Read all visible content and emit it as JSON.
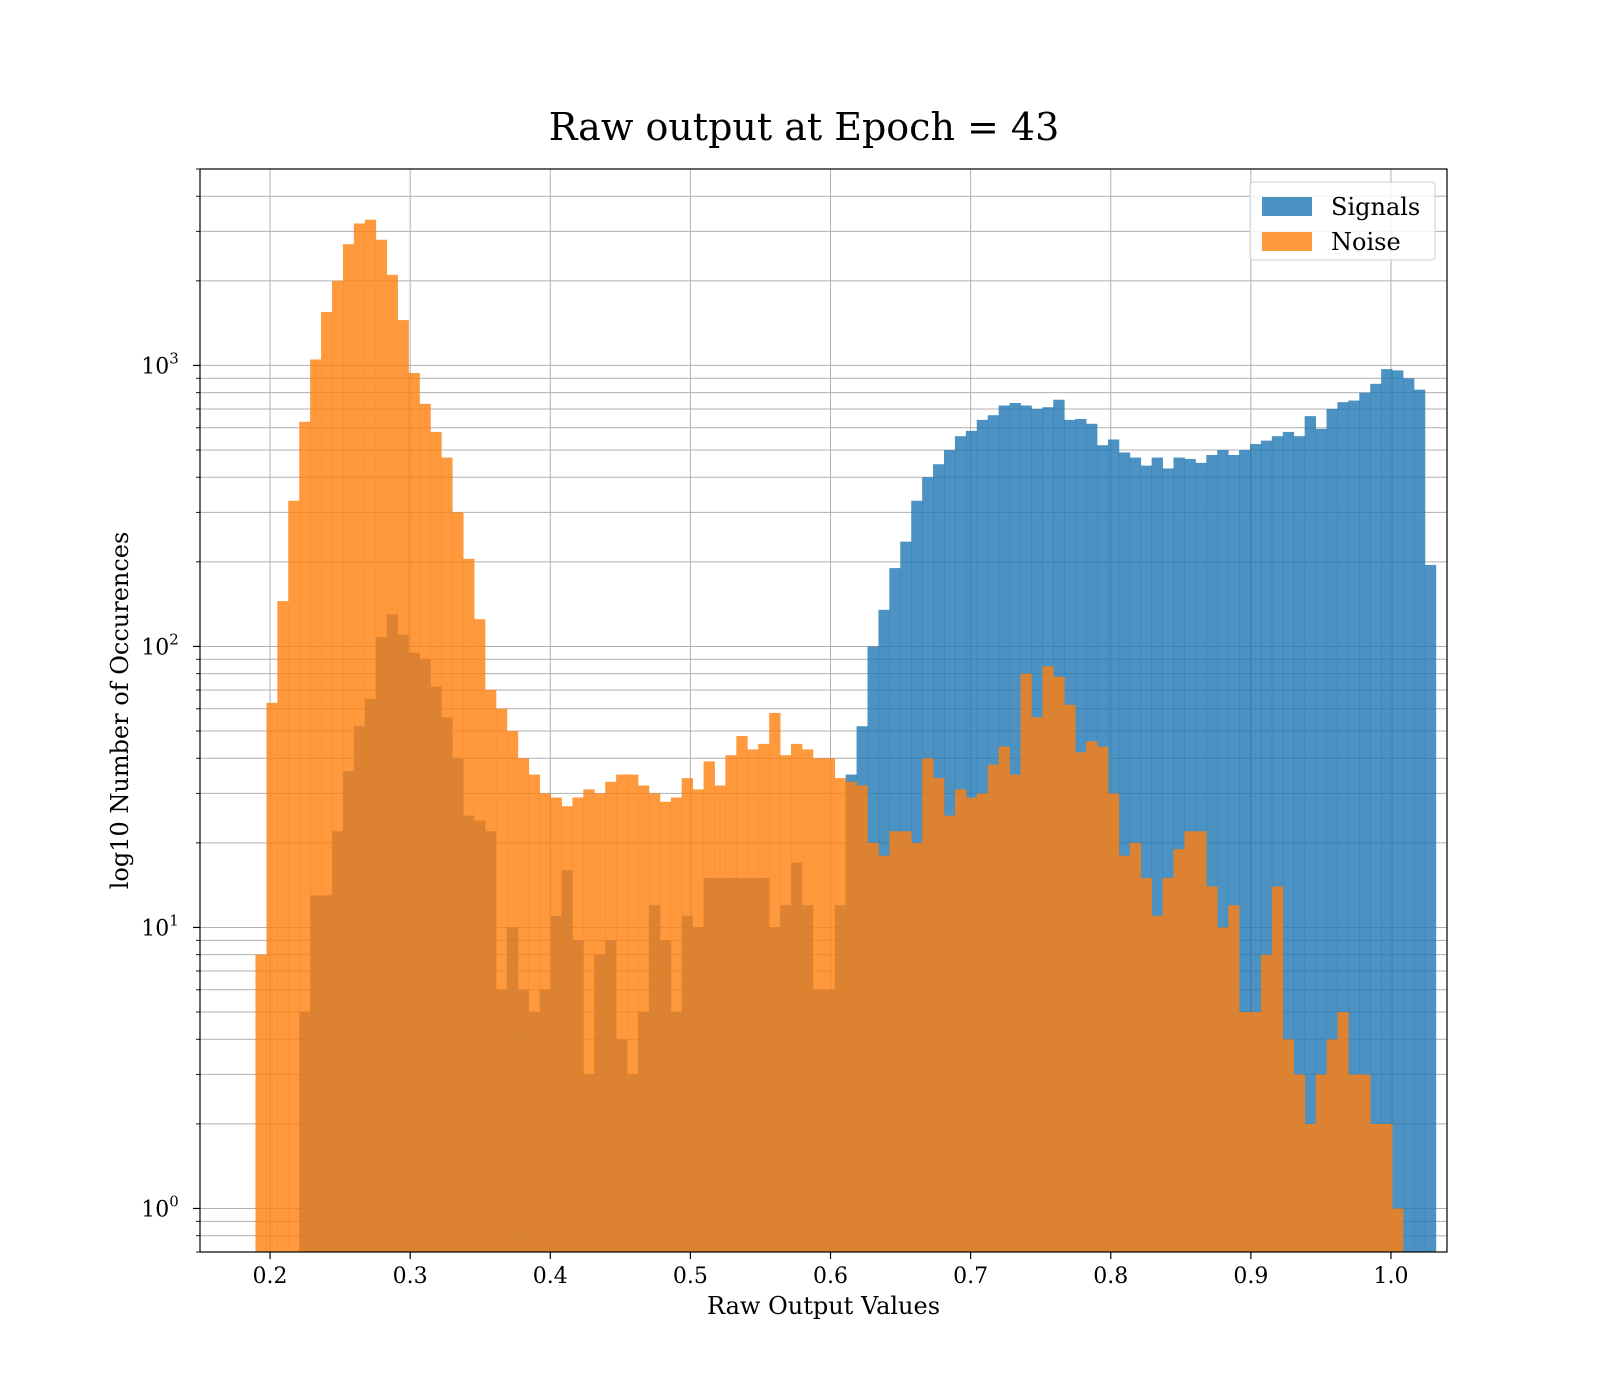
{
  "chart_data": {
    "type": "bar",
    "subtype": "overlapping-histogram",
    "title": "Raw output at Epoch = 43",
    "xlabel": "Raw Output Values",
    "ylabel": "log10 Number of Occurences",
    "xlim": [
      0.15,
      1.04
    ],
    "ylim": [
      0.7,
      5000
    ],
    "yscale": "log",
    "grid": true,
    "legend_position": "top-right",
    "bar_opacity": 0.8,
    "x_ticks": [
      {
        "value": 0.2,
        "label": "0.2"
      },
      {
        "value": 0.3,
        "label": "0.3"
      },
      {
        "value": 0.4,
        "label": "0.4"
      },
      {
        "value": 0.5,
        "label": "0.5"
      },
      {
        "value": 0.6,
        "label": "0.6"
      },
      {
        "value": 0.7,
        "label": "0.7"
      },
      {
        "value": 0.8,
        "label": "0.8"
      },
      {
        "value": 0.9,
        "label": "0.9"
      },
      {
        "value": 1.0,
        "label": "1.0"
      }
    ],
    "y_ticks": [
      {
        "value": 1,
        "base": "10",
        "exp": "0"
      },
      {
        "value": 10,
        "base": "10",
        "exp": "1"
      },
      {
        "value": 100,
        "base": "10",
        "exp": "2"
      },
      {
        "value": 1000,
        "base": "10",
        "exp": "3"
      }
    ],
    "bin_width": 0.0078,
    "series": [
      {
        "name": "Signals",
        "color": "#1f77b4",
        "x_start": 0.2208,
        "values": [
          5,
          13,
          13,
          22,
          36,
          52,
          65,
          108,
          130,
          110,
          95,
          90,
          72,
          56,
          40,
          25,
          24,
          22,
          6,
          10,
          6,
          5,
          6,
          11,
          16,
          9,
          3,
          8,
          9,
          4,
          3,
          5,
          12,
          9,
          5,
          11,
          10,
          15,
          15,
          15,
          15,
          15,
          15,
          10,
          12,
          17,
          12,
          6,
          6,
          12,
          35,
          52,
          100,
          135,
          190,
          236,
          330,
          400,
          445,
          500,
          560,
          585,
          640,
          665,
          720,
          735,
          720,
          700,
          710,
          755,
          640,
          645,
          620,
          520,
          545,
          490,
          470,
          440,
          470,
          430,
          470,
          465,
          450,
          480,
          500,
          480,
          500,
          525,
          540,
          560,
          580,
          560,
          660,
          595,
          700,
          740,
          750,
          800,
          860,
          970,
          960,
          900,
          820,
          195
        ]
      },
      {
        "name": "Noise",
        "color": "#ff7f0e",
        "x_start": 0.1896,
        "values": [
          8,
          63,
          145,
          330,
          630,
          1050,
          1550,
          2000,
          2700,
          3200,
          3300,
          2800,
          2100,
          1450,
          940,
          730,
          580,
          470,
          300,
          205,
          125,
          70,
          60,
          50,
          40,
          35,
          30,
          29,
          27,
          29,
          31,
          30,
          33,
          35,
          35,
          32,
          30,
          28,
          29,
          34,
          31,
          39,
          32,
          41,
          48,
          43,
          45,
          58,
          41,
          45,
          43,
          40,
          40,
          34,
          33,
          32,
          20,
          18,
          22,
          22,
          20,
          40,
          34,
          25,
          31,
          29,
          30,
          38,
          44,
          35,
          80,
          56,
          85,
          78,
          62,
          42,
          46,
          44,
          30,
          18,
          20,
          15,
          11,
          15,
          19,
          22,
          22,
          14,
          10,
          12,
          5,
          5,
          8,
          14,
          4,
          3,
          2,
          3,
          4,
          5,
          3,
          3,
          2,
          2,
          1
        ]
      }
    ]
  }
}
